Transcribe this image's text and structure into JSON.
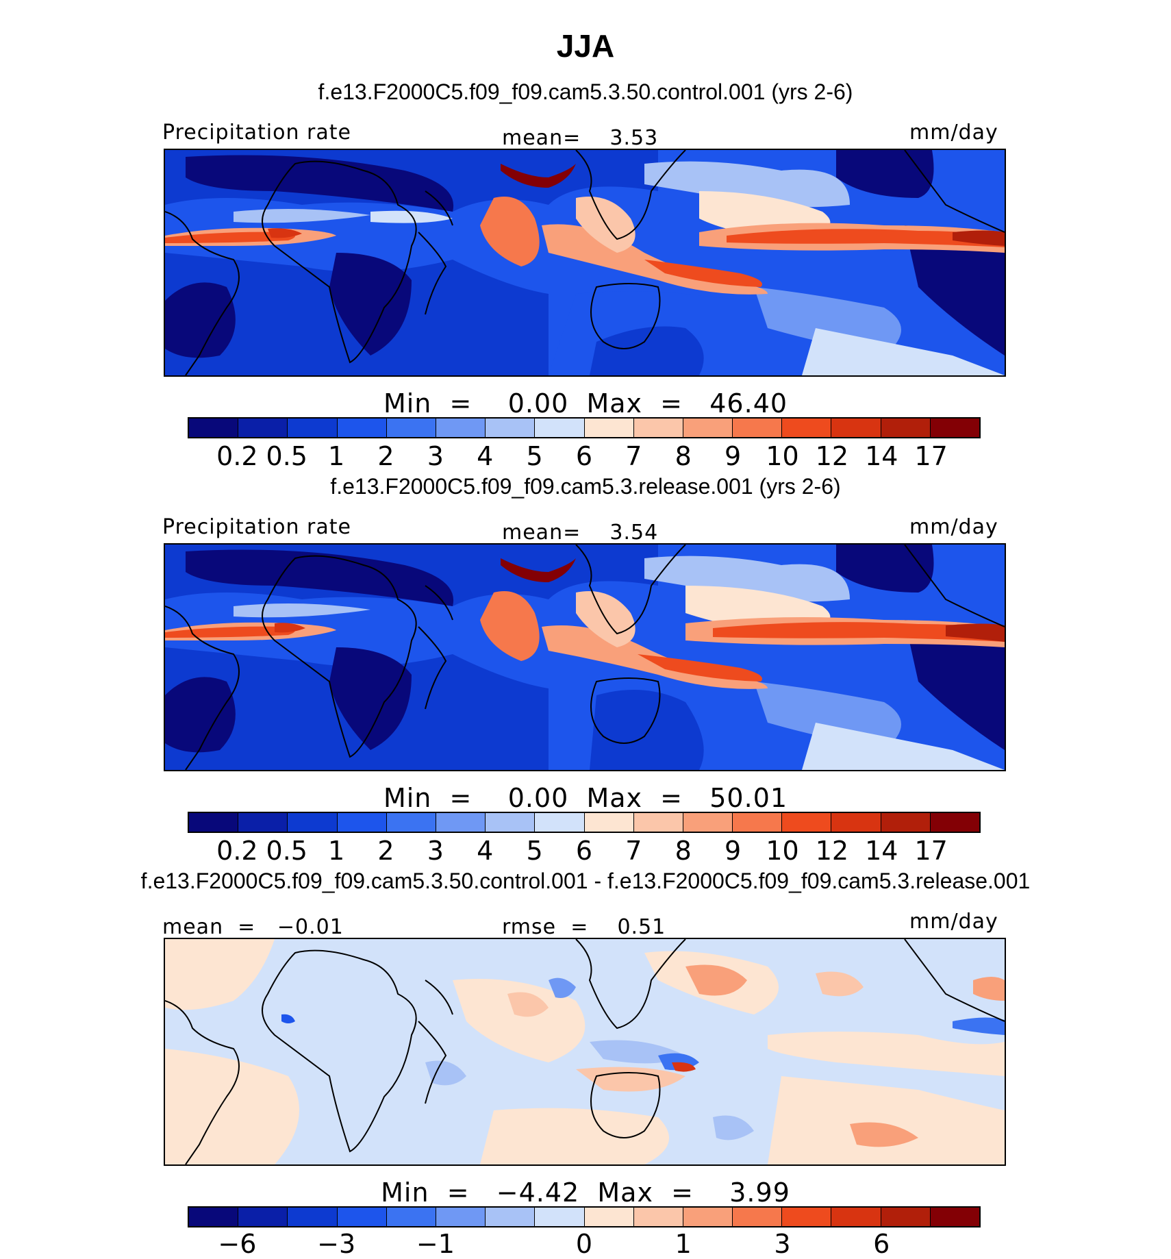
{
  "figure": {
    "title": "JJA"
  },
  "panels": [
    {
      "case_title": "f.e13.F2000C5.f09_f09.cam5.3.50.control.001 (yrs 2-6)",
      "left_label": "Precipitation rate",
      "center_label": "mean=    3.53",
      "right_label": "mm/day",
      "minmax_label": "Min  =    0.00  Max  =   46.40",
      "min": 0.0,
      "max": 46.4,
      "mean": 3.53
    },
    {
      "case_title": "f.e13.F2000C5.f09_f09.cam5.3.release.001 (yrs 2-6)",
      "left_label": "Precipitation rate",
      "center_label": "mean=    3.54",
      "right_label": "mm/day",
      "minmax_label": "Min  =    0.00  Max  =   50.01",
      "min": 0.0,
      "max": 50.01,
      "mean": 3.54
    },
    {
      "case_title": "f.e13.F2000C5.f09_f09.cam5.3.50.control.001 - f.e13.F2000C5.f09_f09.cam5.3.release.001",
      "left_label": "mean  =   −0.01",
      "center_label": "rmse  =    0.51",
      "right_label": "mm/day",
      "minmax_label": "Min  =   −4.42  Max  =    3.99",
      "min": -4.42,
      "max": 3.99,
      "mean": -0.01,
      "rmse": 0.51
    }
  ],
  "colorbars": {
    "field": {
      "colors": [
        "#08087a",
        "#0a1fa8",
        "#0d3ad0",
        "#1d55ec",
        "#3b73f2",
        "#6f98f4",
        "#a8c2f6",
        "#d2e2fa",
        "#fde5d2",
        "#fbc6aa",
        "#f9a07a",
        "#f6784c",
        "#ee4b1e",
        "#d83411",
        "#b11f0a",
        "#830005"
      ],
      "ticks": [
        "0.2",
        "0.5",
        "1",
        "2",
        "3",
        "4",
        "5",
        "6",
        "7",
        "8",
        "9",
        "10",
        "12",
        "14",
        "17"
      ]
    },
    "diff": {
      "colors": [
        "#08087a",
        "#0a1fa8",
        "#0d3ad0",
        "#1d55ec",
        "#3b73f2",
        "#6f98f4",
        "#a8c2f6",
        "#d2e2fa",
        "#fde5d2",
        "#fbc6aa",
        "#f9a07a",
        "#f6784c",
        "#ee4b1e",
        "#d83411",
        "#b11f0a",
        "#830005"
      ],
      "ticks": [
        "−6",
        "−3",
        "−1",
        "0",
        "1",
        "3",
        "6"
      ],
      "tick_boundaries": [
        1,
        3,
        5,
        8,
        10,
        12,
        14
      ]
    }
  }
}
